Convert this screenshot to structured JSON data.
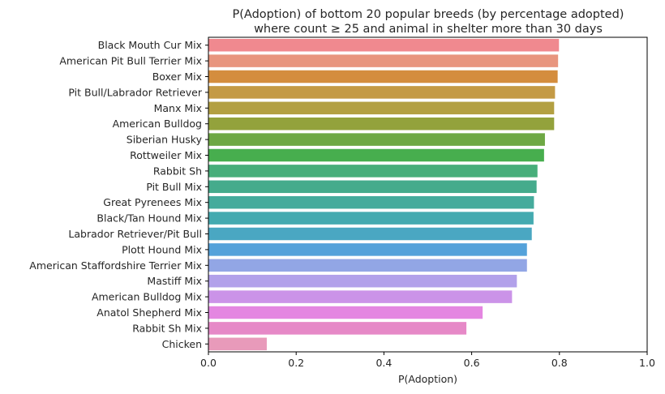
{
  "chart_data": {
    "type": "bar",
    "orientation": "horizontal",
    "title_line1": "P(Adoption) of bottom 20 popular breeds (by percentage adopted)",
    "title_line2": "where count ≥ 25 and animal in shelter more than 30 days",
    "xlabel": "P(Adoption)",
    "ylabel": "",
    "xlim": [
      0,
      1.0
    ],
    "xticks": [
      "0.0",
      "0.2",
      "0.4",
      "0.6",
      "0.8",
      "1.0"
    ],
    "grid": false,
    "categories": [
      "Black Mouth Cur Mix",
      "American Pit Bull Terrier Mix",
      "Boxer Mix",
      "Pit Bull/Labrador Retriever",
      "Manx Mix",
      "American Bulldog",
      "Siberian Husky",
      "Rottweiler Mix",
      "Rabbit Sh",
      "Pit Bull Mix",
      "Great Pyrenees Mix",
      "Black/Tan Hound Mix",
      "Labrador Retriever/Pit Bull",
      "Plott Hound Mix",
      "American Staffordshire Terrier Mix",
      "Mastiff Mix",
      "American Bulldog Mix",
      "Anatol Shepherd Mix",
      "Rabbit Sh Mix",
      "Chicken"
    ],
    "values": [
      0.799,
      0.797,
      0.796,
      0.79,
      0.788,
      0.788,
      0.767,
      0.765,
      0.75,
      0.748,
      0.742,
      0.741,
      0.737,
      0.726,
      0.726,
      0.703,
      0.692,
      0.625,
      0.588,
      0.133
    ],
    "colors": [
      "#f0898f",
      "#e8957e",
      "#d48d3e",
      "#c49a45",
      "#b3a042",
      "#93a23c",
      "#6ea844",
      "#47ae4e",
      "#47ae7a",
      "#45ab8c",
      "#45ab9c",
      "#44aab0",
      "#4aa7c2",
      "#54a2da",
      "#92a6e5",
      "#b2a1ea",
      "#cb93e8",
      "#e486e1",
      "#e689c7",
      "#e89aba"
    ]
  }
}
